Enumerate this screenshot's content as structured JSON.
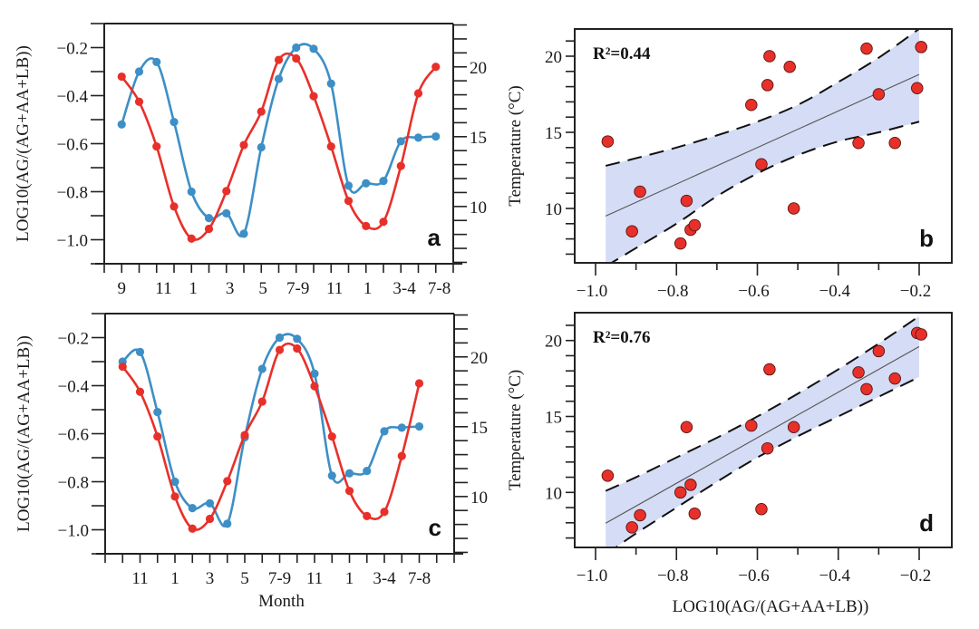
{
  "chart_data": [
    {
      "panel": "a",
      "type": "line",
      "panel_label": "a",
      "xlabel": "",
      "ylabel_left": "LOG10(AG/(AG+AA+LB))",
      "ylabel_right": "Temperature (°C)",
      "x_tick_labels": [
        "9",
        "11",
        "1",
        "3",
        "5",
        "7-9",
        "11",
        "1",
        "3-4",
        "7-8"
      ],
      "ylim_left": [
        -1.1,
        -0.1
      ],
      "yticks_left": [
        -0.2,
        -0.4,
        -0.6,
        -0.8,
        -1.0
      ],
      "ylim_right": [
        5.9,
        23.1
      ],
      "yticks_right": [
        10,
        15,
        20
      ],
      "series": [
        {
          "name": "LOG10(AG/(AG+AA+LB))",
          "axis": "left",
          "color": "#3d8fc6",
          "values": [
            -0.52,
            -0.3,
            -0.26,
            -0.51,
            -0.8,
            -0.91,
            -0.89,
            -0.975,
            -0.615,
            -0.33,
            -0.2,
            -0.205,
            -0.35,
            -0.775,
            -0.765,
            -0.755,
            -0.59,
            -0.575,
            -0.57
          ]
        },
        {
          "name": "Temperature",
          "axis": "right",
          "color": "#e8302a",
          "values": [
            19.3,
            17.5,
            14.3,
            10.0,
            7.7,
            8.4,
            11.1,
            14.4,
            16.8,
            20.5,
            20.6,
            17.9,
            14.3,
            10.4,
            8.6,
            8.9,
            12.9,
            18.1,
            20.0
          ]
        }
      ]
    },
    {
      "panel": "b",
      "type": "scatter",
      "panel_label": "b",
      "annotation": "R²=0.44",
      "xlabel": "",
      "ylabel": "Temperature (°C)",
      "xlim": [
        -1.05,
        -0.12
      ],
      "xticks": [
        -1.0,
        -0.8,
        -0.6,
        -0.4,
        -0.2
      ],
      "x_tick_labels": [
        "−1.0",
        "−0.8",
        "−0.6",
        "−0.4",
        "−0.2"
      ],
      "ylim": [
        6.5,
        21.8
      ],
      "yticks": [
        10,
        15,
        20
      ],
      "point_color": "#e8302a",
      "band_color": "#d5dcf5",
      "points": [
        [
          -0.52,
          19.3
        ],
        [
          -0.3,
          17.5
        ],
        [
          -0.26,
          14.3
        ],
        [
          -0.51,
          10.0
        ],
        [
          -0.79,
          7.7
        ],
        [
          -0.91,
          8.5
        ],
        [
          -0.89,
          11.1
        ],
        [
          -0.97,
          14.4
        ],
        [
          -0.615,
          16.8
        ],
        [
          -0.33,
          20.5
        ],
        [
          -0.195,
          20.6
        ],
        [
          -0.205,
          17.9
        ],
        [
          -0.35,
          14.3
        ],
        [
          -0.775,
          10.5
        ],
        [
          -0.765,
          8.6
        ],
        [
          -0.755,
          8.9
        ],
        [
          -0.59,
          12.9
        ],
        [
          -0.575,
          18.1
        ],
        [
          -0.57,
          20.0
        ]
      ],
      "fit": {
        "x_range": [
          -0.975,
          -0.2
        ],
        "slope": 12.0,
        "intercept": 21.2
      },
      "confidence_band": {
        "x": [
          -0.975,
          -0.9,
          -0.8,
          -0.7,
          -0.6,
          -0.5,
          -0.4,
          -0.3,
          -0.2
        ],
        "upper": [
          12.8,
          13.3,
          14.0,
          14.8,
          15.7,
          16.8,
          18.3,
          19.9,
          21.8
        ],
        "lower": [
          6.2,
          7.4,
          9.0,
          10.8,
          12.3,
          13.5,
          14.4,
          15.0,
          15.7
        ]
      }
    },
    {
      "panel": "c",
      "type": "line",
      "panel_label": "c",
      "xlabel": "Month",
      "ylabel_left": "LOG10(AG/(AG+AA+LB))",
      "ylabel_right": "Temperature (°C)",
      "x_tick_labels": [
        "11",
        "1",
        "3",
        "5",
        "7-9",
        "11",
        "1",
        "3-4",
        "7-8"
      ],
      "ylim_left": [
        -1.1,
        -0.1
      ],
      "yticks_left": [
        -0.2,
        -0.4,
        -0.6,
        -0.8,
        -1.0
      ],
      "ylim_right": [
        5.9,
        23.1
      ],
      "yticks_right": [
        10,
        15,
        20
      ],
      "series": [
        {
          "name": "LOG10(AG/(AG+AA+LB))",
          "axis": "left",
          "color": "#3d8fc6",
          "values": [
            -0.3,
            -0.26,
            -0.51,
            -0.8,
            -0.91,
            -0.89,
            -0.975,
            -0.615,
            -0.33,
            -0.2,
            -0.205,
            -0.35,
            -0.775,
            -0.765,
            -0.755,
            -0.59,
            -0.575,
            -0.57
          ]
        },
        {
          "name": "Temperature",
          "axis": "right",
          "color": "#e8302a",
          "values": [
            19.3,
            17.5,
            14.3,
            10.0,
            7.7,
            8.4,
            11.1,
            14.4,
            16.8,
            20.5,
            20.6,
            17.9,
            14.3,
            10.4,
            8.6,
            8.9,
            12.9,
            18.1
          ]
        }
      ]
    },
    {
      "panel": "d",
      "type": "scatter",
      "panel_label": "d",
      "annotation": "R²=0.76",
      "xlabel": "LOG10(AG/(AG+AA+LB))",
      "ylabel": "Temperature (°C)",
      "xlim": [
        -1.05,
        -0.12
      ],
      "xticks": [
        -1.0,
        -0.8,
        -0.6,
        -0.4,
        -0.2
      ],
      "x_tick_labels": [
        "−1.0",
        "−0.8",
        "−0.6",
        "−0.4",
        "−0.2"
      ],
      "ylim": [
        6.5,
        21.8
      ],
      "yticks": [
        10,
        15,
        20
      ],
      "point_color": "#e8302a",
      "band_color": "#d5dcf5",
      "points": [
        [
          -0.3,
          19.3
        ],
        [
          -0.26,
          17.5
        ],
        [
          -0.51,
          14.3
        ],
        [
          -0.79,
          10.0
        ],
        [
          -0.91,
          7.7
        ],
        [
          -0.89,
          8.5
        ],
        [
          -0.97,
          11.1
        ],
        [
          -0.615,
          14.4
        ],
        [
          -0.33,
          16.8
        ],
        [
          -0.205,
          20.5
        ],
        [
          -0.195,
          20.4
        ],
        [
          -0.35,
          17.9
        ],
        [
          -0.775,
          14.3
        ],
        [
          -0.765,
          10.5
        ],
        [
          -0.755,
          8.6
        ],
        [
          -0.59,
          8.9
        ],
        [
          -0.575,
          12.9
        ],
        [
          -0.57,
          18.1
        ]
      ],
      "fit": {
        "x_range": [
          -0.975,
          -0.2
        ],
        "slope": 15.0,
        "intercept": 22.6
      },
      "confidence_band": {
        "x": [
          -0.975,
          -0.9,
          -0.8,
          -0.7,
          -0.6,
          -0.5,
          -0.4,
          -0.3,
          -0.2
        ],
        "upper": [
          10.1,
          11.0,
          12.3,
          13.6,
          15.0,
          16.5,
          18.1,
          19.8,
          21.6
        ],
        "lower": [
          5.9,
          7.3,
          9.0,
          10.7,
          12.3,
          13.7,
          15.0,
          16.3,
          17.6
        ]
      }
    }
  ]
}
